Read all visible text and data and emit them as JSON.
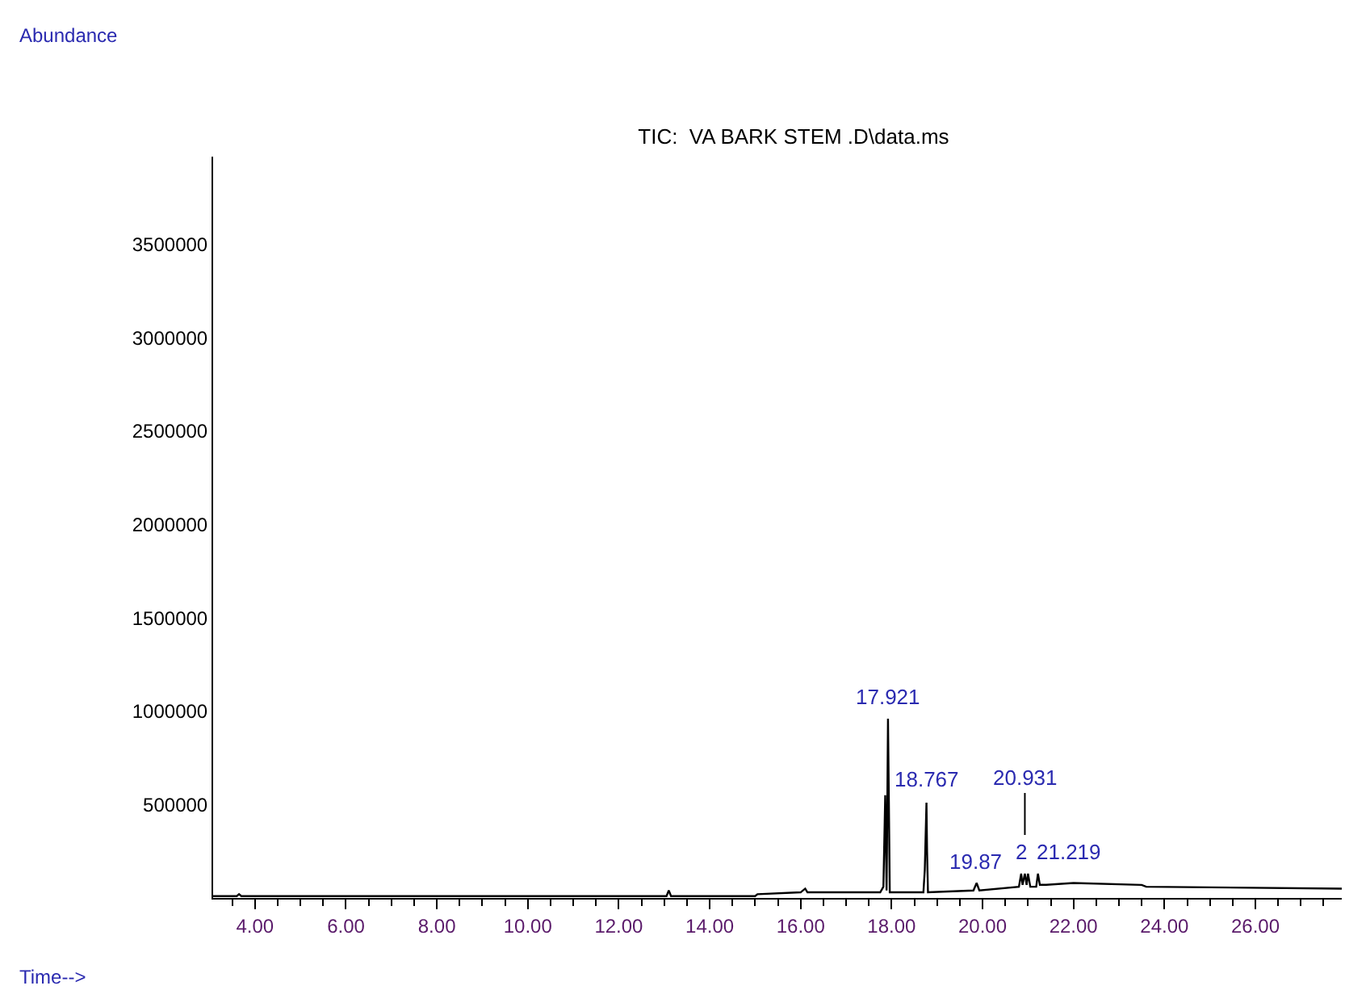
{
  "chart_data": {
    "type": "line",
    "title": "TIC:  VA BARK STEM .D\\data.ms",
    "xlabel": "Time-->",
    "x": [
      3.08,
      3.6,
      3.65,
      3.7,
      13.05,
      13.1,
      13.15,
      15.0,
      15.05,
      16.0,
      16.1,
      16.15,
      17.75,
      17.82,
      17.86,
      17.89,
      17.9,
      17.921,
      17.94,
      17.96,
      18.7,
      18.73,
      18.767,
      18.78,
      18.8,
      19.8,
      19.87,
      19.93,
      20.8,
      20.85,
      20.88,
      20.931,
      20.97,
      21.0,
      21.05,
      21.18,
      21.219,
      21.26,
      21.4,
      22.0,
      23.5,
      23.6,
      27.9
    ],
    "series": [
      {
        "color": "#000000",
        "values": [
          10000,
          10000,
          20000,
          10000,
          10000,
          40000,
          10000,
          10000,
          20000,
          30000,
          50000,
          30000,
          30000,
          60000,
          550000,
          40000,
          300000,
          960000,
          520000,
          30000,
          30000,
          150000,
          510000,
          250000,
          30000,
          40000,
          80000,
          40000,
          60000,
          130000,
          70000,
          130000,
          70000,
          130000,
          60000,
          60000,
          130000,
          70000,
          70000,
          80000,
          70000,
          60000,
          50000
        ]
      }
    ],
    "annotations": [
      "Abundance",
      {
        "text": "17.921",
        "x": 17.921,
        "y": 960000
      },
      {
        "text": "18.767",
        "x": 18.767,
        "y": 515000
      },
      {
        "text": "19.87",
        "x": 19.87,
        "y": 80000
      },
      {
        "text": "2",
        "x": 20.85,
        "y": 130000
      },
      {
        "text": "20.931",
        "x": 20.931,
        "y": 130000
      },
      {
        "text": "21.219",
        "x": 21.219,
        "y": 130000
      }
    ],
    "xlim": [
      3.08,
      27.9
    ],
    "ylim": [
      0,
      3970000
    ],
    "xticks": [
      {
        "value": 4,
        "label": "4.00"
      },
      {
        "value": 6,
        "label": "6.00"
      },
      {
        "value": 8,
        "label": "8.00"
      },
      {
        "value": 10,
        "label": "10.00"
      },
      {
        "value": 12,
        "label": "12.00"
      },
      {
        "value": 14,
        "label": "14.00"
      },
      {
        "value": 16,
        "label": "16.00"
      },
      {
        "value": 18,
        "label": "18.00"
      },
      {
        "value": 20,
        "label": "20.00"
      },
      {
        "value": 22,
        "label": "22.00"
      },
      {
        "value": 24,
        "label": "24.00"
      },
      {
        "value": 26,
        "label": "26.00"
      }
    ],
    "yticks": [
      500000,
      1000000,
      1500000,
      2000000,
      2500000,
      3000000,
      3500000
    ],
    "marker": "none",
    "line_style": "solid"
  }
}
